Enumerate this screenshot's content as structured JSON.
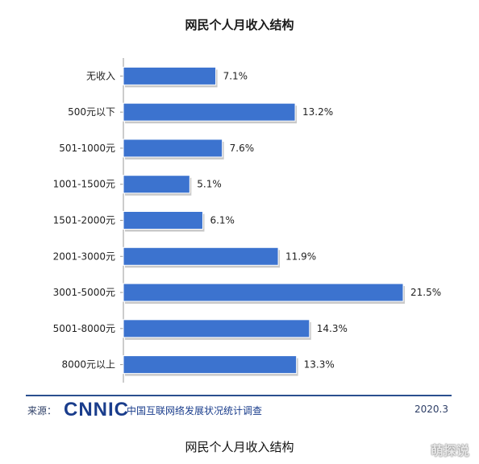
{
  "chart_data": {
    "type": "bar",
    "orientation": "horizontal",
    "title": "网民个人月收入结构",
    "categories": [
      "无收入",
      "500元以下",
      "501-1000元",
      "1001-1500元",
      "1501-2000元",
      "2001-3000元",
      "3001-5000元",
      "5001-8000元",
      "8000元以上"
    ],
    "values": [
      7.1,
      13.2,
      7.6,
      5.1,
      6.1,
      11.9,
      21.5,
      14.3,
      13.3
    ],
    "value_labels": [
      "7.1%",
      "13.2%",
      "7.6%",
      "5.1%",
      "6.1%",
      "11.9%",
      "21.5%",
      "14.3%",
      "13.3%"
    ],
    "unit": "%",
    "xlim": [
      0,
      21.5
    ],
    "grid": false,
    "legend": "none",
    "bar_color": "#3c73cf"
  },
  "footer": {
    "source_label": "来源：",
    "logo": "CNNIC",
    "org_name": "中国互联网络发展状况统计调查",
    "date": "2020.3"
  },
  "caption": "网民个人月收入结构",
  "watermark": "萌探说"
}
